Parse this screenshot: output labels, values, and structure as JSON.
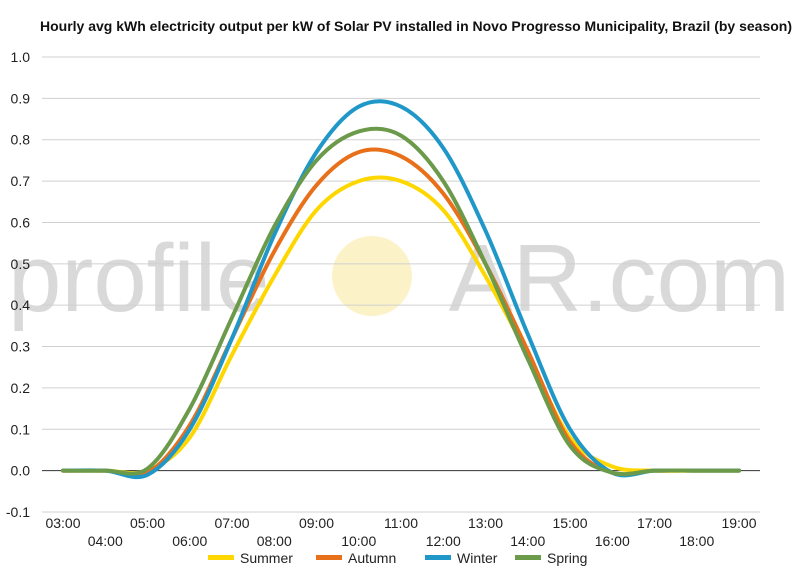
{
  "chart_data": {
    "type": "line",
    "title": "Hourly avg kWh electricity output per kW of Solar PV installed in Novo Progresso Municipality, Brazil (by season)",
    "xlabel": "",
    "ylabel": "",
    "x": [
      "03:00",
      "04:00",
      "05:00",
      "06:00",
      "07:00",
      "08:00",
      "09:00",
      "10:00",
      "11:00",
      "12:00",
      "13:00",
      "14:00",
      "15:00",
      "16:00",
      "17:00",
      "18:00",
      "19:00"
    ],
    "ylim": [
      -0.1,
      1.0
    ],
    "yticks": [
      "-0.1",
      "0.0",
      "0.1",
      "0.2",
      "0.3",
      "0.4",
      "0.5",
      "0.6",
      "0.7",
      "0.8",
      "0.9",
      "1.0"
    ],
    "grid": true,
    "legend_position": "bottom",
    "series": [
      {
        "name": "Summer",
        "color": "#FFD700",
        "values": [
          0,
          0,
          0,
          0.08,
          0.28,
          0.47,
          0.63,
          0.7,
          0.7,
          0.63,
          0.47,
          0.28,
          0.08,
          0.01,
          0,
          0,
          0
        ]
      },
      {
        "name": "Autumn",
        "color": "#E8701A",
        "values": [
          0,
          0,
          -0.005,
          0.11,
          0.32,
          0.53,
          0.69,
          0.77,
          0.76,
          0.67,
          0.5,
          0.29,
          0.07,
          -0.005,
          0,
          0,
          0
        ]
      },
      {
        "name": "Winter",
        "color": "#1F97C8",
        "values": [
          0,
          0,
          -0.01,
          0.1,
          0.32,
          0.57,
          0.77,
          0.88,
          0.88,
          0.78,
          0.58,
          0.33,
          0.1,
          -0.005,
          0,
          0,
          0
        ]
      },
      {
        "name": "Spring",
        "color": "#6A9A4A",
        "values": [
          0,
          0,
          0.005,
          0.15,
          0.37,
          0.59,
          0.75,
          0.82,
          0.81,
          0.7,
          0.5,
          0.27,
          0.06,
          -0.005,
          0,
          0,
          0
        ]
      }
    ]
  },
  "watermark": {
    "left": "profile",
    "right": "AR.com"
  }
}
